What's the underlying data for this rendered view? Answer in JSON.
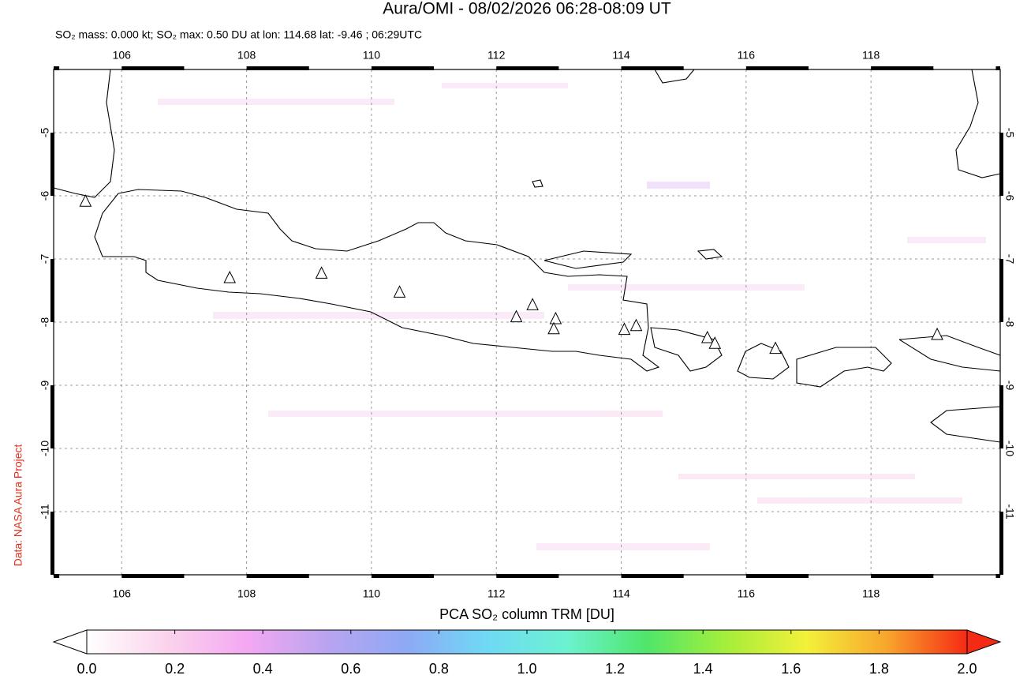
{
  "title": "Aura/OMI - 08/02/2026 06:28-08:09 UT",
  "subtitle": "SO₂ mass: 0.000 kt; SO₂ max: 0.50 DU at lon: 114.68 lat: -9.46 ; 06:29UTC",
  "credit": "Data: NASA Aura Project",
  "map": {
    "lonlim": [
      104.91,
      120.07
    ],
    "latlim": [
      -12,
      -4
    ],
    "lon_ticks": [
      106,
      108,
      110,
      112,
      114,
      116,
      118
    ],
    "lat_ticks": [
      -5,
      -6,
      -7,
      -8,
      -9,
      -10,
      -11
    ],
    "volcanoes": {
      "lon": [
        105.42,
        107.73,
        109.2,
        110.45,
        112.32,
        112.58,
        112.95,
        112.92,
        114.05,
        114.24,
        115.38,
        115.5,
        116.47,
        119.06
      ],
      "lat": [
        -6.09,
        -7.3,
        -7.23,
        -7.53,
        -7.92,
        -7.73,
        -7.95,
        -8.11,
        -8.12,
        -8.06,
        -8.25,
        -8.34,
        -8.42,
        -8.2
      ]
    }
  },
  "colorbar": {
    "label": "PCA SO₂ column TRM [DU]",
    "lim": [
      0,
      2
    ],
    "ticks": [
      {
        "value": 0,
        "label": "0.0"
      },
      0.2,
      0.4,
      0.6,
      0.8,
      {
        "value": 1,
        "label": "1.0"
      },
      1.2,
      1.4,
      1.6,
      1.8,
      {
        "value": 2,
        "label": "2.0"
      }
    ],
    "colors": [
      "#ffffff",
      "#fbd3ec",
      "#f4a8f2",
      "#b9a4f0",
      "#8ea9f5",
      "#6fd9f5",
      "#6cf2d0",
      "#4fe66a",
      "#a6ee3a",
      "#f3f03a",
      "#f8a52c",
      "#f52a14"
    ]
  }
}
